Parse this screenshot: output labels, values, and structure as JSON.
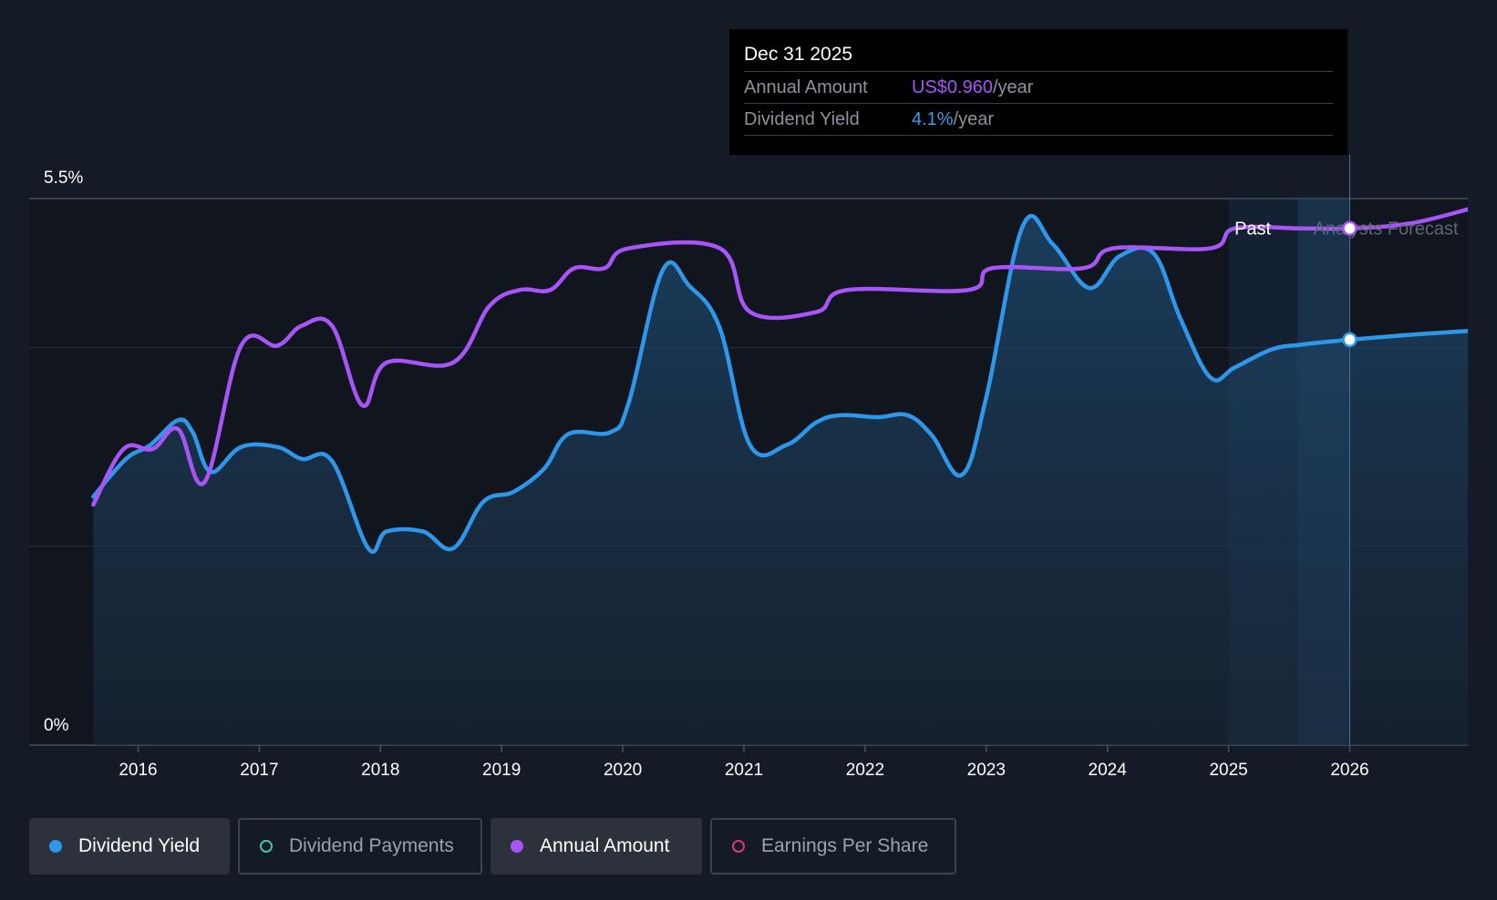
{
  "tooltip": {
    "date": "Dec 31 2025",
    "rows": [
      {
        "label": "Annual Amount",
        "value": "US$0.960",
        "unit": "/year"
      },
      {
        "label": "Dividend Yield",
        "value": "4.1%",
        "unit": "/year"
      }
    ]
  },
  "legend": {
    "items": [
      {
        "label": "Dividend Yield",
        "color": "#2f97ea",
        "style": "filled"
      },
      {
        "label": "Dividend Payments",
        "color": "#45c4b0",
        "style": "outline"
      },
      {
        "label": "Annual Amount",
        "color": "#a855f7",
        "style": "filled"
      },
      {
        "label": "Earnings Per Share",
        "color": "#d23c7a",
        "style": "outline"
      }
    ]
  },
  "chart_data": {
    "type": "line",
    "y_tick_labels": [
      "5.5%",
      "0%"
    ],
    "ylim": [
      0,
      5.5
    ],
    "x_tick_labels": [
      "2016",
      "2017",
      "2018",
      "2019",
      "2020",
      "2021",
      "2022",
      "2023",
      "2024",
      "2025",
      "2026"
    ],
    "xlim": [
      2015.6,
      2027.0
    ],
    "regions": {
      "past_label": "Past",
      "forecast_label": "Analysts Forecast"
    },
    "grid": true,
    "series": [
      {
        "name": "Dividend Yield",
        "color": "#2f97ea",
        "area": true,
        "points": [
          [
            2015.63,
            2.5
          ],
          [
            2015.9,
            2.88
          ],
          [
            2016.1,
            3.02
          ],
          [
            2016.33,
            3.27
          ],
          [
            2016.45,
            3.15
          ],
          [
            2016.6,
            2.75
          ],
          [
            2016.85,
            3.0
          ],
          [
            2017.15,
            3.0
          ],
          [
            2017.35,
            2.88
          ],
          [
            2017.6,
            2.86
          ],
          [
            2017.9,
            1.98
          ],
          [
            2018.05,
            2.15
          ],
          [
            2018.35,
            2.15
          ],
          [
            2018.6,
            1.98
          ],
          [
            2018.85,
            2.45
          ],
          [
            2019.1,
            2.55
          ],
          [
            2019.35,
            2.78
          ],
          [
            2019.55,
            3.13
          ],
          [
            2019.9,
            3.15
          ],
          [
            2020.05,
            3.45
          ],
          [
            2020.33,
            4.78
          ],
          [
            2020.55,
            4.62
          ],
          [
            2020.8,
            4.2
          ],
          [
            2021.05,
            3.02
          ],
          [
            2021.35,
            3.02
          ],
          [
            2021.6,
            3.25
          ],
          [
            2021.8,
            3.32
          ],
          [
            2022.1,
            3.3
          ],
          [
            2022.35,
            3.32
          ],
          [
            2022.55,
            3.12
          ],
          [
            2022.8,
            2.72
          ],
          [
            2023.0,
            3.5
          ],
          [
            2023.3,
            5.22
          ],
          [
            2023.55,
            5.04
          ],
          [
            2023.85,
            4.6
          ],
          [
            2024.1,
            4.92
          ],
          [
            2024.38,
            4.95
          ],
          [
            2024.6,
            4.3
          ],
          [
            2024.85,
            3.7
          ],
          [
            2025.05,
            3.8
          ],
          [
            2025.35,
            3.98
          ],
          [
            2025.6,
            4.03
          ],
          [
            2026.0,
            4.08
          ],
          [
            2026.5,
            4.13
          ],
          [
            2027.0,
            4.17
          ]
        ]
      },
      {
        "name": "Annual Amount",
        "color": "#a855f7",
        "area": false,
        "points": [
          [
            2015.63,
            2.42
          ],
          [
            2015.88,
            2.98
          ],
          [
            2016.12,
            2.98
          ],
          [
            2016.33,
            3.18
          ],
          [
            2016.55,
            2.65
          ],
          [
            2016.85,
            4.02
          ],
          [
            2017.15,
            4.02
          ],
          [
            2017.35,
            4.22
          ],
          [
            2017.6,
            4.22
          ],
          [
            2017.85,
            3.42
          ],
          [
            2018.05,
            3.85
          ],
          [
            2018.6,
            3.85
          ],
          [
            2018.9,
            4.42
          ],
          [
            2019.15,
            4.58
          ],
          [
            2019.4,
            4.58
          ],
          [
            2019.6,
            4.8
          ],
          [
            2019.85,
            4.8
          ],
          [
            2020.05,
            5.0
          ],
          [
            2020.8,
            5.0
          ],
          [
            2021.05,
            4.36
          ],
          [
            2021.6,
            4.36
          ],
          [
            2021.85,
            4.58
          ],
          [
            2022.85,
            4.58
          ],
          [
            2023.05,
            4.8
          ],
          [
            2023.8,
            4.8
          ],
          [
            2024.05,
            5.0
          ],
          [
            2024.85,
            5.0
          ],
          [
            2025.05,
            5.2
          ],
          [
            2025.6,
            5.2
          ],
          [
            2026.0,
            5.2
          ],
          [
            2026.5,
            5.25
          ],
          [
            2027.0,
            5.4
          ]
        ]
      }
    ],
    "highlight": {
      "x": 2026.0,
      "annual_amount": 5.2,
      "dividend_yield": 4.08
    }
  }
}
